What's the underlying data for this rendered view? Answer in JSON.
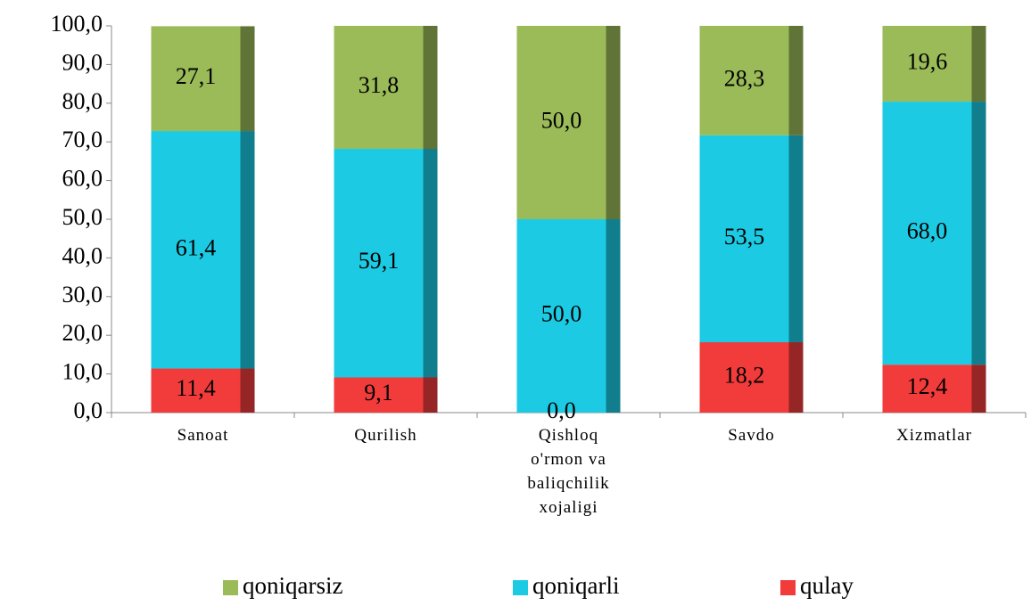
{
  "chart_data": {
    "type": "stacked_bar",
    "categories": [
      "Sanoat",
      "Qurilish",
      "Qishloq o'rmon va baliqchilik xojaligi",
      "Savdo",
      "Xizmatlar"
    ],
    "series": [
      {
        "name": "qulay",
        "color": "#f23b3b",
        "values": [
          11.4,
          9.1,
          0.0,
          18.2,
          12.4
        ],
        "value_labels": [
          "11,4",
          "9,1",
          "0,0",
          "18,2",
          "12,4"
        ]
      },
      {
        "name": "qoniqarli",
        "color": "#1ccbe3",
        "values": [
          61.4,
          59.1,
          50.0,
          53.5,
          68.0
        ],
        "value_labels": [
          "61,4",
          "59,1",
          "50,0",
          "53,5",
          "68,0"
        ]
      },
      {
        "name": "qoniqarsiz",
        "color": "#9bbb59",
        "values": [
          27.1,
          31.8,
          50.0,
          28.3,
          19.6
        ],
        "value_labels": [
          "27,1",
          "31,8",
          "50,0",
          "28,3",
          "19,6"
        ]
      }
    ],
    "ylim": [
      0,
      100
    ],
    "yticks": [
      {
        "value": 0,
        "label": "0,0"
      },
      {
        "value": 10,
        "label": "10,0"
      },
      {
        "value": 20,
        "label": "20,0"
      },
      {
        "value": 30,
        "label": "30,0"
      },
      {
        "value": 40,
        "label": "40,0"
      },
      {
        "value": 50,
        "label": "50,0"
      },
      {
        "value": 60,
        "label": "60,0"
      },
      {
        "value": 70,
        "label": "70,0"
      },
      {
        "value": 80,
        "label": "80,0"
      },
      {
        "value": 90,
        "label": "90,0"
      },
      {
        "value": 100,
        "label": "100,0"
      }
    ],
    "grid": false,
    "legend": "bottom"
  }
}
